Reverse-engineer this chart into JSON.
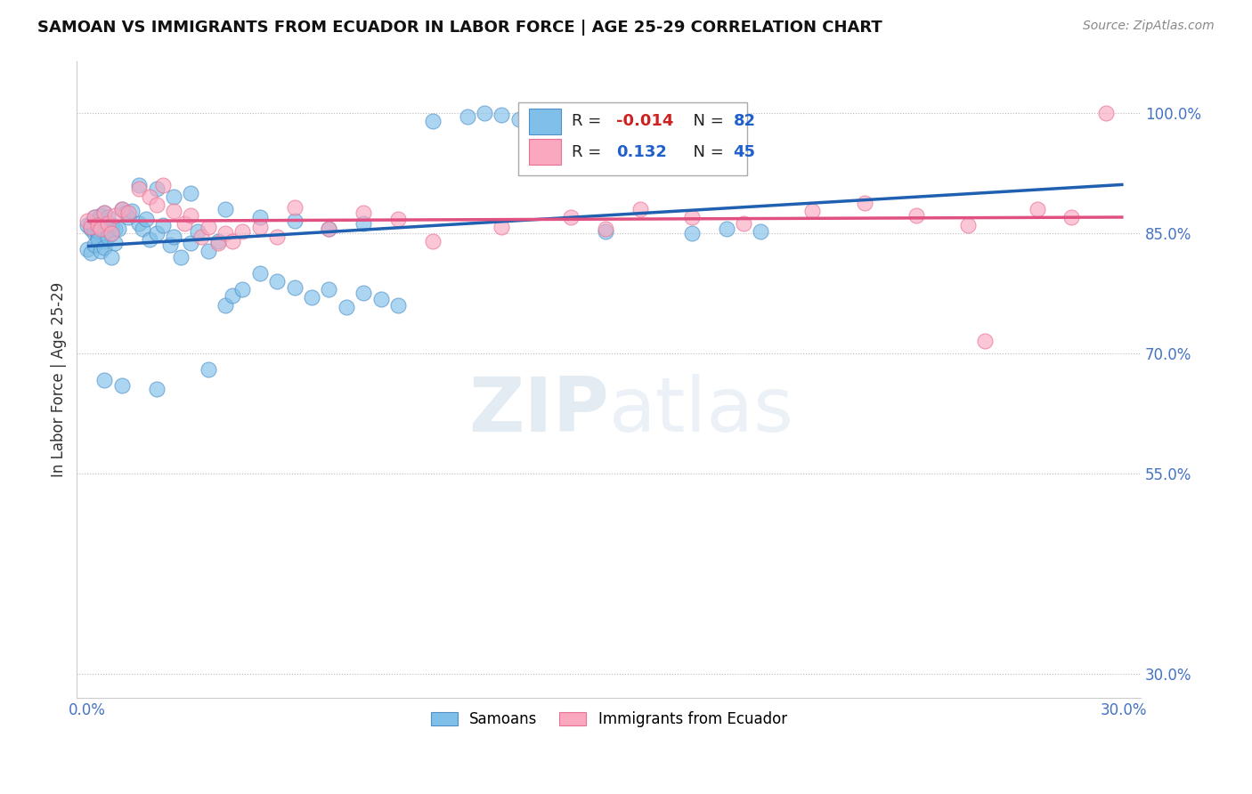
{
  "title": "SAMOAN VS IMMIGRANTS FROM ECUADOR IN LABOR FORCE | AGE 25-29 CORRELATION CHART",
  "source": "Source: ZipAtlas.com",
  "ylabel": "In Labor Force | Age 25-29",
  "blue_R": -0.014,
  "blue_N": 82,
  "pink_R": 0.132,
  "pink_N": 45,
  "blue_color": "#7fbfe8",
  "pink_color": "#f9a8c0",
  "blue_edge_color": "#5090c8",
  "pink_edge_color": "#e87090",
  "blue_line_color": "#2060b0",
  "pink_line_color": "#e05080",
  "watermark_color": "#c8d8e8",
  "grid_color": "#bbbbbb",
  "ytick_color": "#4472c4",
  "xtick_color": "#4472c4",
  "title_color": "#111111",
  "source_color": "#888888",
  "ylabel_color": "#333333",
  "xlim": [
    -0.003,
    0.305
  ],
  "ylim": [
    0.27,
    1.065
  ],
  "ytick_vals": [
    0.3,
    0.55,
    0.7,
    0.85,
    1.0
  ],
  "ytick_labels": [
    "30.0%",
    "55.0%",
    "70.0%",
    "85.0%",
    "100.0%"
  ],
  "xtick_vals": [
    0.0,
    0.05,
    0.1,
    0.15,
    0.2,
    0.25,
    0.3
  ],
  "xtick_labels": [
    "0.0%",
    "",
    "",
    "",
    "",
    "",
    "30.0%"
  ]
}
